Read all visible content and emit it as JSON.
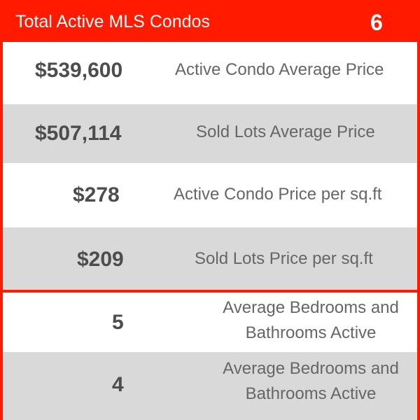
{
  "header": {
    "title": "Total Active MLS Condos",
    "count": "6"
  },
  "stats": [
    {
      "value": "$539,600",
      "label": "Active Condo Average Price"
    },
    {
      "value": "$507,114",
      "label": "Sold Lots Average Price"
    },
    {
      "value": "$278",
      "label": "Active Condo Price per sq.ft"
    },
    {
      "value": "$209",
      "label": "Sold Lots Price per sq.ft"
    },
    {
      "value": "5",
      "label": "Average Bedrooms and Bathrooms Active"
    },
    {
      "value": "4",
      "label": "Average Bedrooms and Bathrooms Active"
    }
  ],
  "colors": {
    "accent": "#ff1a00",
    "row_white": "#ffffff",
    "row_gray": "#d9d9d9",
    "value_text": "#4d4d4d",
    "label_text": "#666666"
  }
}
